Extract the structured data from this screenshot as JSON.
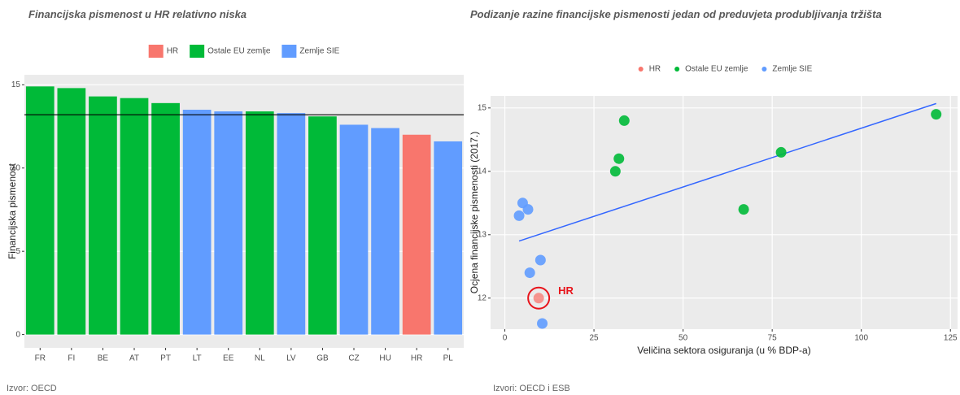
{
  "chart_data": [
    {
      "type": "bar",
      "title": "Financijska pismenost u HR relativno niska",
      "ylabel": "Financijska pismenost",
      "source": "Izvor: OECD",
      "categories": [
        "FR",
        "FI",
        "BE",
        "AT",
        "PT",
        "LT",
        "EE",
        "NL",
        "LV",
        "GB",
        "CZ",
        "HU",
        "HR",
        "PL"
      ],
      "series": [
        {
          "name": "HR",
          "color": "#f8766d",
          "values": [
            null,
            null,
            null,
            null,
            null,
            null,
            null,
            null,
            null,
            null,
            null,
            null,
            12.0,
            null
          ]
        },
        {
          "name": "Ostale EU zemlje",
          "color": "#00ba38",
          "values": [
            14.9,
            14.8,
            14.3,
            14.2,
            13.9,
            null,
            null,
            13.4,
            null,
            13.1,
            null,
            null,
            null,
            null
          ]
        },
        {
          "name": "Zemlje SIE",
          "color": "#619cff",
          "values": [
            null,
            null,
            null,
            null,
            null,
            13.5,
            13.4,
            null,
            13.3,
            null,
            12.6,
            12.4,
            null,
            11.6
          ]
        }
      ],
      "hline": 13.2,
      "ylim": [
        -0.8,
        15.6
      ],
      "yticks": [
        0,
        5,
        10,
        15
      ],
      "grid": true
    },
    {
      "type": "scatter",
      "title": "Podizanje razine financijske pismenosti jedan od preduvjeta produbljivanja tržišta",
      "xlabel": "Veličina sektora osiguranja (u % BDP-a)",
      "ylabel": "Ocjena financijske pismenosti (2017.)",
      "source": "Izvori: OECD i ESB",
      "annotation": "HR",
      "series": [
        {
          "name": "HR",
          "color": "#f8766d",
          "x": [
            9.5
          ],
          "values": [
            12.0
          ]
        },
        {
          "name": "Ostale EU zemlje",
          "color": "#00ba38",
          "x": [
            121,
            77.5,
            67,
            33.5,
            32,
            31
          ],
          "values": [
            14.9,
            14.3,
            13.4,
            14.8,
            14.2,
            14.0
          ]
        },
        {
          "name": "Zemlje SIE",
          "color": "#619cff",
          "x": [
            4,
            5,
            6.5,
            10,
            7,
            10.5
          ],
          "values": [
            13.3,
            13.5,
            13.4,
            12.6,
            12.4,
            11.6
          ]
        }
      ],
      "trend": {
        "color": "#3366ff",
        "x": [
          4,
          121
        ],
        "y": [
          12.9,
          15.07
        ]
      },
      "xlim": [
        -4,
        127
      ],
      "xticks": [
        0,
        25,
        50,
        75,
        100,
        125
      ],
      "ylim": [
        11.51,
        15.19
      ],
      "yticks": [
        12,
        13,
        14,
        15
      ],
      "grid": true
    }
  ]
}
